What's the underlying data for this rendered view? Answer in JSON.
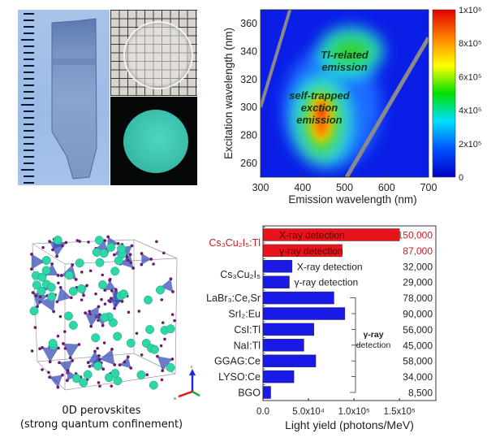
{
  "panel_a": {
    "photos": [
      "crystal-boule",
      "crystal-wafer-on-grid",
      "crystal-wafer-luminescence"
    ]
  },
  "chart_data": [
    {
      "type": "heatmap",
      "xlabel": "Emission wavelength (nm)",
      "ylabel": "Excitation wavelength (nm)",
      "xlim": [
        300,
        700
      ],
      "ylim": [
        250,
        370
      ],
      "xticks": [
        "300",
        "400",
        "500",
        "600",
        "700"
      ],
      "yticks": [
        "260",
        "280",
        "300",
        "320",
        "340",
        "360"
      ],
      "colorbar": {
        "range": [
          0,
          1000000
        ],
        "ticks": [
          "0",
          "2x10⁵",
          "4x10⁵",
          "6x10⁵",
          "8x10⁵",
          "1x10⁶"
        ],
        "colors": [
          "#0000c8",
          "#0050ff",
          "#00e0ff",
          "#00e000",
          "#ffff00",
          "#ff8000",
          "#e00000"
        ]
      },
      "peaks": [
        {
          "label_lines": [
            "self-trapped",
            "exction",
            "emission"
          ],
          "emission_nm": 445,
          "excitation_nm": 290,
          "intensity": 1000000
        },
        {
          "label_lines": [
            "Tl-related",
            "emission"
          ],
          "emission_nm": 515,
          "excitation_nm": 340,
          "intensity": 550000
        }
      ],
      "annotations": [
        "self-trapped exction emission",
        "Tl-related emission"
      ],
      "background_color": "#0a1ee6"
    },
    {
      "type": "bar",
      "orientation": "horizontal",
      "xlabel": "Light yield  (photons/MeV)",
      "xlim": [
        0,
        190000
      ],
      "xticks": [
        {
          "value": 0,
          "label": "0.0"
        },
        {
          "value": 50000,
          "label": "5.0x10⁴"
        },
        {
          "value": 100000,
          "label": "1.0x10⁵"
        },
        {
          "value": 150000,
          "label": "1.5x10⁵"
        }
      ],
      "groups": [
        {
          "label": "Cs₃Cu₂I₅:Tl",
          "color": "#e8141c",
          "rows": 2
        },
        {
          "label": "Cs₃Cu₂I₅",
          "color": "#1a1ae6",
          "rows": 2
        }
      ],
      "bars": [
        {
          "category": "Cs₃Cu₂I₅:Tl",
          "inner_label": "X-ray detection",
          "value": 150000,
          "value_label": "150,000",
          "color": "#e8141c"
        },
        {
          "category": "Cs₃Cu₂I₅:Tl",
          "inner_label": "γ-ray detection",
          "value": 87000,
          "value_label": "87,000",
          "color": "#e8141c"
        },
        {
          "category": "Cs₃Cu₂I₅",
          "inner_label": "X-ray detection",
          "value": 32000,
          "value_label": "32,000",
          "color": "#1a1ae6"
        },
        {
          "category": "Cs₃Cu₂I₅",
          "inner_label": "γ-ray detection",
          "value": 29000,
          "value_label": "29,000",
          "color": "#1a1ae6"
        },
        {
          "category": "LaBr₃:Ce,Sr",
          "value": 78000,
          "value_label": "78,000",
          "color": "#1a1ae6"
        },
        {
          "category": "SrI₂:Eu",
          "value": 90000,
          "value_label": "90,000",
          "color": "#1a1ae6"
        },
        {
          "category": "CsI:Tl",
          "value": 56000,
          "value_label": "56,000",
          "color": "#1a1ae6"
        },
        {
          "category": "NaI:Tl",
          "value": 45000,
          "value_label": "45,000",
          "color": "#1a1ae6"
        },
        {
          "category": "GGAG:Ce",
          "value": 58000,
          "value_label": "58,000",
          "color": "#1a1ae6"
        },
        {
          "category": "LYSO:Ce",
          "value": 34000,
          "value_label": "34,000",
          "color": "#1a1ae6"
        },
        {
          "category": "BGO",
          "value": 8500,
          "value_label": "8,500",
          "color": "#1a1ae6"
        }
      ],
      "bracket_label_lines": [
        "γ-ray",
        "detection"
      ]
    }
  ],
  "panel_c": {
    "caption_line1": "0D perovskites",
    "caption_line2": "(strong quantum confinement)",
    "axes_labels": [
      "c",
      "a"
    ],
    "atom_colors": {
      "cs": "#2fd6a8",
      "cu": "#3a4fb5",
      "i": "#6a1d6e"
    }
  }
}
